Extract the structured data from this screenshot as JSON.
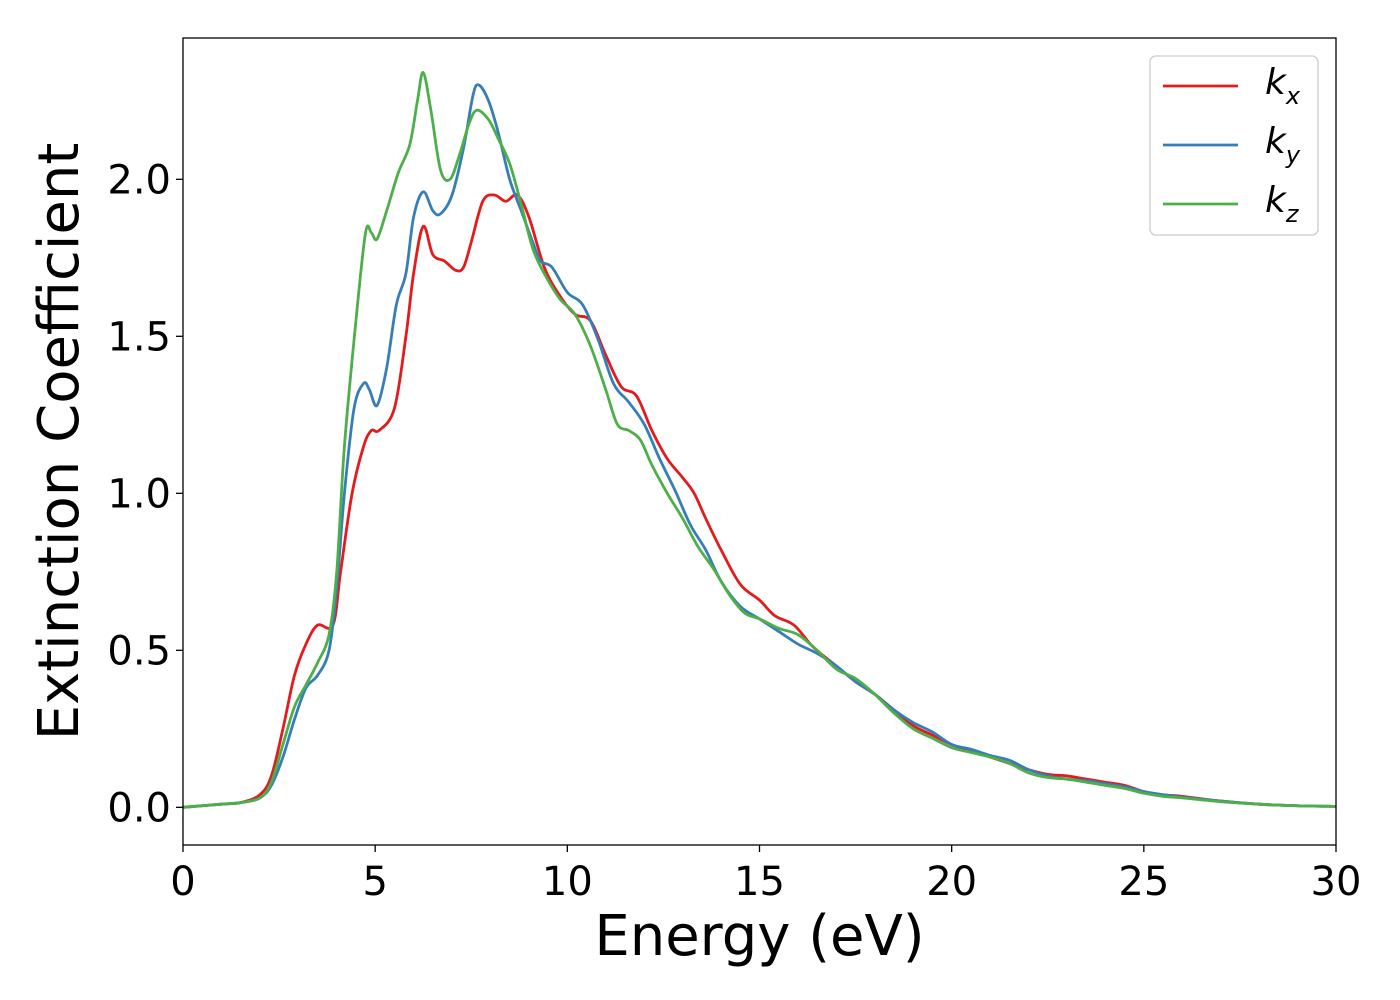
{
  "chart_data": {
    "type": "line",
    "title": "",
    "xlabel": "Energy (eV)",
    "ylabel": "Extinction Coefficient",
    "xlim": [
      0,
      30
    ],
    "ylim": [
      -0.12,
      2.45
    ],
    "xticks": [
      0,
      5,
      10,
      15,
      20,
      25,
      30
    ],
    "xtick_labels": [
      "0",
      "5",
      "10",
      "15",
      "20",
      "25",
      "30"
    ],
    "yticks": [
      0.0,
      0.5,
      1.0,
      1.5,
      2.0
    ],
    "ytick_labels": [
      "0.0",
      "0.5",
      "1.0",
      "1.5",
      "2.0"
    ],
    "grid": false,
    "legend_position": "top-right",
    "series": [
      {
        "name": "k",
        "subscript": "x",
        "color": "#e41a1c",
        "points": [
          [
            0,
            0
          ],
          [
            1,
            0.01
          ],
          [
            1.5,
            0.015
          ],
          [
            2,
            0.04
          ],
          [
            2.3,
            0.1
          ],
          [
            2.6,
            0.25
          ],
          [
            2.9,
            0.42
          ],
          [
            3.2,
            0.52
          ],
          [
            3.5,
            0.58
          ],
          [
            3.9,
            0.58
          ],
          [
            4.1,
            0.75
          ],
          [
            4.4,
            1.0
          ],
          [
            4.7,
            1.15
          ],
          [
            4.9,
            1.2
          ],
          [
            5.1,
            1.2
          ],
          [
            5.5,
            1.27
          ],
          [
            5.8,
            1.5
          ],
          [
            6.0,
            1.7
          ],
          [
            6.25,
            1.85
          ],
          [
            6.5,
            1.76
          ],
          [
            6.8,
            1.74
          ],
          [
            7.1,
            1.71
          ],
          [
            7.3,
            1.72
          ],
          [
            7.5,
            1.8
          ],
          [
            7.8,
            1.93
          ],
          [
            8.1,
            1.95
          ],
          [
            8.4,
            1.93
          ],
          [
            8.7,
            1.95
          ],
          [
            9.0,
            1.88
          ],
          [
            9.4,
            1.72
          ],
          [
            9.8,
            1.63
          ],
          [
            10.2,
            1.57
          ],
          [
            10.6,
            1.55
          ],
          [
            11.0,
            1.44
          ],
          [
            11.4,
            1.34
          ],
          [
            11.8,
            1.31
          ],
          [
            12.2,
            1.2
          ],
          [
            12.6,
            1.11
          ],
          [
            13.0,
            1.05
          ],
          [
            13.3,
            1.0
          ],
          [
            13.6,
            0.92
          ],
          [
            14.0,
            0.82
          ],
          [
            14.5,
            0.71
          ],
          [
            15.0,
            0.66
          ],
          [
            15.4,
            0.61
          ],
          [
            15.9,
            0.58
          ],
          [
            16.4,
            0.51
          ],
          [
            17.0,
            0.45
          ],
          [
            17.5,
            0.4
          ],
          [
            18.0,
            0.36
          ],
          [
            18.5,
            0.31
          ],
          [
            19.0,
            0.26
          ],
          [
            19.5,
            0.23
          ],
          [
            20.0,
            0.2
          ],
          [
            20.5,
            0.18
          ],
          [
            21.0,
            0.16
          ],
          [
            21.5,
            0.14
          ],
          [
            22.0,
            0.12
          ],
          [
            22.5,
            0.105
          ],
          [
            23.0,
            0.1
          ],
          [
            23.5,
            0.09
          ],
          [
            24.0,
            0.08
          ],
          [
            24.5,
            0.07
          ],
          [
            25.0,
            0.05
          ],
          [
            25.5,
            0.04
          ],
          [
            26.0,
            0.035
          ],
          [
            27.0,
            0.02
          ],
          [
            28.0,
            0.01
          ],
          [
            29.0,
            0.005
          ],
          [
            30.0,
            0.003
          ]
        ]
      },
      {
        "name": "k",
        "subscript": "y",
        "color": "#377eb8",
        "points": [
          [
            0,
            0
          ],
          [
            1,
            0.01
          ],
          [
            1.5,
            0.015
          ],
          [
            2,
            0.03
          ],
          [
            2.3,
            0.07
          ],
          [
            2.6,
            0.16
          ],
          [
            2.9,
            0.28
          ],
          [
            3.2,
            0.38
          ],
          [
            3.5,
            0.42
          ],
          [
            3.8,
            0.5
          ],
          [
            4.0,
            0.7
          ],
          [
            4.2,
            1.0
          ],
          [
            4.45,
            1.27
          ],
          [
            4.7,
            1.35
          ],
          [
            4.85,
            1.33
          ],
          [
            5.05,
            1.28
          ],
          [
            5.3,
            1.4
          ],
          [
            5.55,
            1.6
          ],
          [
            5.8,
            1.7
          ],
          [
            6.0,
            1.88
          ],
          [
            6.25,
            1.96
          ],
          [
            6.5,
            1.9
          ],
          [
            6.7,
            1.89
          ],
          [
            7.0,
            1.95
          ],
          [
            7.3,
            2.1
          ],
          [
            7.55,
            2.27
          ],
          [
            7.7,
            2.3
          ],
          [
            7.95,
            2.25
          ],
          [
            8.2,
            2.15
          ],
          [
            8.5,
            2.0
          ],
          [
            8.8,
            1.9
          ],
          [
            9.1,
            1.8
          ],
          [
            9.3,
            1.74
          ],
          [
            9.6,
            1.72
          ],
          [
            10.0,
            1.64
          ],
          [
            10.4,
            1.6
          ],
          [
            10.8,
            1.49
          ],
          [
            11.2,
            1.35
          ],
          [
            11.6,
            1.29
          ],
          [
            12.0,
            1.22
          ],
          [
            12.4,
            1.11
          ],
          [
            12.8,
            1.01
          ],
          [
            13.2,
            0.9
          ],
          [
            13.6,
            0.82
          ],
          [
            14.0,
            0.72
          ],
          [
            14.5,
            0.64
          ],
          [
            15.0,
            0.6
          ],
          [
            15.5,
            0.56
          ],
          [
            16.0,
            0.52
          ],
          [
            16.5,
            0.49
          ],
          [
            17.0,
            0.45
          ],
          [
            17.5,
            0.4
          ],
          [
            18.0,
            0.36
          ],
          [
            18.5,
            0.31
          ],
          [
            19.0,
            0.27
          ],
          [
            19.5,
            0.24
          ],
          [
            20.0,
            0.2
          ],
          [
            20.5,
            0.185
          ],
          [
            21.0,
            0.165
          ],
          [
            21.5,
            0.15
          ],
          [
            22.0,
            0.12
          ],
          [
            22.5,
            0.1
          ],
          [
            23.0,
            0.09
          ],
          [
            23.5,
            0.085
          ],
          [
            24.0,
            0.075
          ],
          [
            24.5,
            0.065
          ],
          [
            25.0,
            0.05
          ],
          [
            25.5,
            0.04
          ],
          [
            26.0,
            0.032
          ],
          [
            27.0,
            0.02
          ],
          [
            28.0,
            0.01
          ],
          [
            29.0,
            0.005
          ],
          [
            30.0,
            0.003
          ]
        ]
      },
      {
        "name": "k",
        "subscript": "z",
        "color": "#4daf4a",
        "points": [
          [
            0,
            0
          ],
          [
            1,
            0.01
          ],
          [
            1.5,
            0.015
          ],
          [
            2,
            0.03
          ],
          [
            2.3,
            0.08
          ],
          [
            2.6,
            0.2
          ],
          [
            2.9,
            0.32
          ],
          [
            3.2,
            0.39
          ],
          [
            3.5,
            0.46
          ],
          [
            3.8,
            0.55
          ],
          [
            4.0,
            0.75
          ],
          [
            4.2,
            1.15
          ],
          [
            4.5,
            1.55
          ],
          [
            4.75,
            1.83
          ],
          [
            4.9,
            1.83
          ],
          [
            5.05,
            1.81
          ],
          [
            5.3,
            1.9
          ],
          [
            5.6,
            2.02
          ],
          [
            5.9,
            2.11
          ],
          [
            6.1,
            2.25
          ],
          [
            6.25,
            2.34
          ],
          [
            6.45,
            2.22
          ],
          [
            6.7,
            2.03
          ],
          [
            6.95,
            2.0
          ],
          [
            7.2,
            2.08
          ],
          [
            7.45,
            2.18
          ],
          [
            7.65,
            2.22
          ],
          [
            7.95,
            2.19
          ],
          [
            8.2,
            2.13
          ],
          [
            8.5,
            2.05
          ],
          [
            8.8,
            1.92
          ],
          [
            9.1,
            1.78
          ],
          [
            9.4,
            1.7
          ],
          [
            9.8,
            1.62
          ],
          [
            10.2,
            1.57
          ],
          [
            10.6,
            1.47
          ],
          [
            11.0,
            1.33
          ],
          [
            11.3,
            1.22
          ],
          [
            11.6,
            1.2
          ],
          [
            11.9,
            1.17
          ],
          [
            12.2,
            1.09
          ],
          [
            12.6,
            1.0
          ],
          [
            13.0,
            0.92
          ],
          [
            13.4,
            0.83
          ],
          [
            13.8,
            0.76
          ],
          [
            14.2,
            0.68
          ],
          [
            14.6,
            0.62
          ],
          [
            15.0,
            0.6
          ],
          [
            15.5,
            0.57
          ],
          [
            16.0,
            0.55
          ],
          [
            16.5,
            0.5
          ],
          [
            17.0,
            0.44
          ],
          [
            17.5,
            0.41
          ],
          [
            18.0,
            0.36
          ],
          [
            18.5,
            0.3
          ],
          [
            19.0,
            0.25
          ],
          [
            19.5,
            0.22
          ],
          [
            20.0,
            0.19
          ],
          [
            20.5,
            0.175
          ],
          [
            21.0,
            0.16
          ],
          [
            21.5,
            0.14
          ],
          [
            22.0,
            0.11
          ],
          [
            22.5,
            0.095
          ],
          [
            23.0,
            0.09
          ],
          [
            23.5,
            0.08
          ],
          [
            24.0,
            0.07
          ],
          [
            24.5,
            0.06
          ],
          [
            25.0,
            0.045
          ],
          [
            25.5,
            0.035
          ],
          [
            26.0,
            0.03
          ],
          [
            27.0,
            0.018
          ],
          [
            28.0,
            0.01
          ],
          [
            29.0,
            0.005
          ],
          [
            30.0,
            0.003
          ]
        ]
      }
    ]
  }
}
